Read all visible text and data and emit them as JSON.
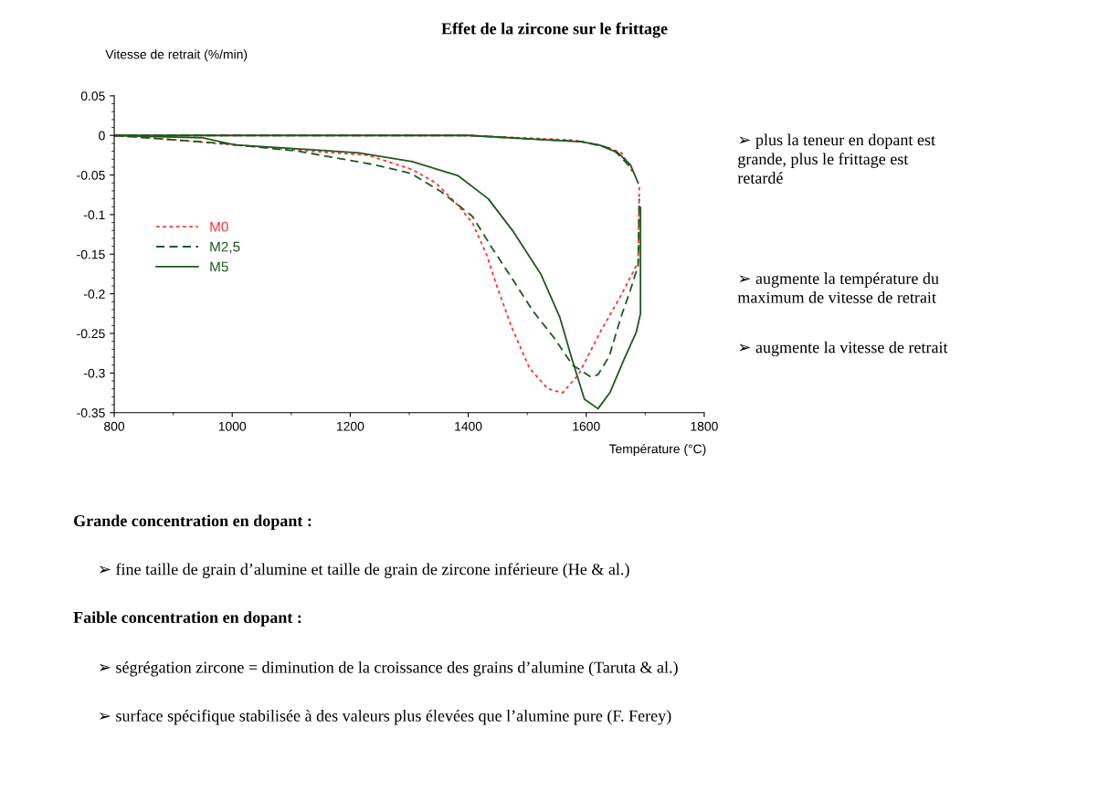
{
  "chart_data": {
    "type": "line",
    "title": "Effet de la zircone sur le frittage",
    "xlabel": "Température (°C)",
    "ylabel": "Vitesse de retrait (%/min)",
    "xlim": [
      800,
      1800
    ],
    "xticks": [
      800,
      1000,
      1200,
      1400,
      1600,
      1800
    ],
    "ylim": [
      -0.35,
      0.05
    ],
    "yticks": [
      -0.35,
      -0.3,
      -0.25,
      -0.2,
      -0.15,
      -0.1,
      -0.05,
      0,
      0.05
    ],
    "grid": false,
    "legend": "left",
    "marker": "none",
    "series": [
      {
        "name": "M0",
        "color": "#ff3030",
        "line_style": "dotted",
        "x": [
          800,
          910,
          1035,
          1190,
          1230,
          1305,
          1345,
          1380,
          1407,
          1432,
          1447,
          1473,
          1504,
          1535,
          1560,
          1587,
          1624,
          1659,
          1688,
          1690
        ],
        "values": [
          0,
          -0.006,
          -0.014,
          -0.023,
          -0.025,
          -0.043,
          -0.06,
          -0.086,
          -0.11,
          -0.152,
          -0.187,
          -0.241,
          -0.294,
          -0.32,
          -0.325,
          -0.302,
          -0.248,
          -0.202,
          -0.16,
          -0.062
        ]
      },
      {
        "color": "#ff3030",
        "line_style": "dotted",
        "x": [
          800,
          1400,
          1580,
          1630,
          1660,
          1680
        ],
        "values": [
          0,
          0,
          -0.006,
          -0.014,
          -0.022,
          -0.048
        ]
      },
      {
        "name": "M2,5",
        "color": "#1e5a1e",
        "line_style": "dashed",
        "x": [
          800,
          983,
          1113,
          1241,
          1303,
          1354,
          1407,
          1442,
          1473,
          1509,
          1546,
          1577,
          1608,
          1620,
          1639,
          1659,
          1675,
          1688,
          1690
        ],
        "values": [
          0,
          -0.01,
          -0.02,
          -0.037,
          -0.048,
          -0.071,
          -0.102,
          -0.144,
          -0.179,
          -0.221,
          -0.256,
          -0.29,
          -0.305,
          -0.302,
          -0.279,
          -0.229,
          -0.195,
          -0.164,
          -0.08
        ]
      },
      {
        "color": "#1e5a1e",
        "line_style": "dashed",
        "x": [
          800,
          1400,
          1595,
          1645,
          1675
        ],
        "values": [
          0,
          0,
          -0.008,
          -0.017,
          -0.04
        ]
      },
      {
        "name": "M5",
        "color": "#1e5a1e",
        "line_style": "solid",
        "x": [
          800,
          950,
          1005,
          1135,
          1215,
          1305,
          1383,
          1434,
          1476,
          1523,
          1555,
          1576,
          1597,
          1620,
          1640,
          1664,
          1685,
          1692,
          1692
        ],
        "values": [
          0,
          -0.003,
          -0.012,
          -0.018,
          -0.022,
          -0.033,
          -0.051,
          -0.08,
          -0.121,
          -0.175,
          -0.229,
          -0.283,
          -0.333,
          -0.345,
          -0.325,
          -0.283,
          -0.248,
          -0.225,
          -0.091
        ]
      },
      {
        "color": "#1e5a1e",
        "line_style": "solid",
        "x": [
          800,
          1400,
          1540,
          1591,
          1622,
          1654,
          1675,
          1688
        ],
        "values": [
          0,
          0,
          -0.006,
          -0.008,
          -0.012,
          -0.022,
          -0.037,
          -0.06
        ]
      }
    ],
    "annotations": [
      "➢ plus la teneur en dopant est\ngrande, plus le frittage est\nretardé",
      "➢ augmente la température du\nmaximum de vitesse de retrait",
      "➢ augmente la vitesse de retrait",
      "Grande concentration en dopant :",
      "➢ fine taille de grain d’alumine et taille de grain de zircone inférieure (He & al.)",
      "Faible concentration en dopant :",
      "➢ ségrégation zircone = diminution de la croissance des grains d’alumine (Taruta & al.)",
      "➢ surface spécifique stabilisée à des valeurs plus élevées que l’alumine pure (F. Ferey)"
    ]
  }
}
